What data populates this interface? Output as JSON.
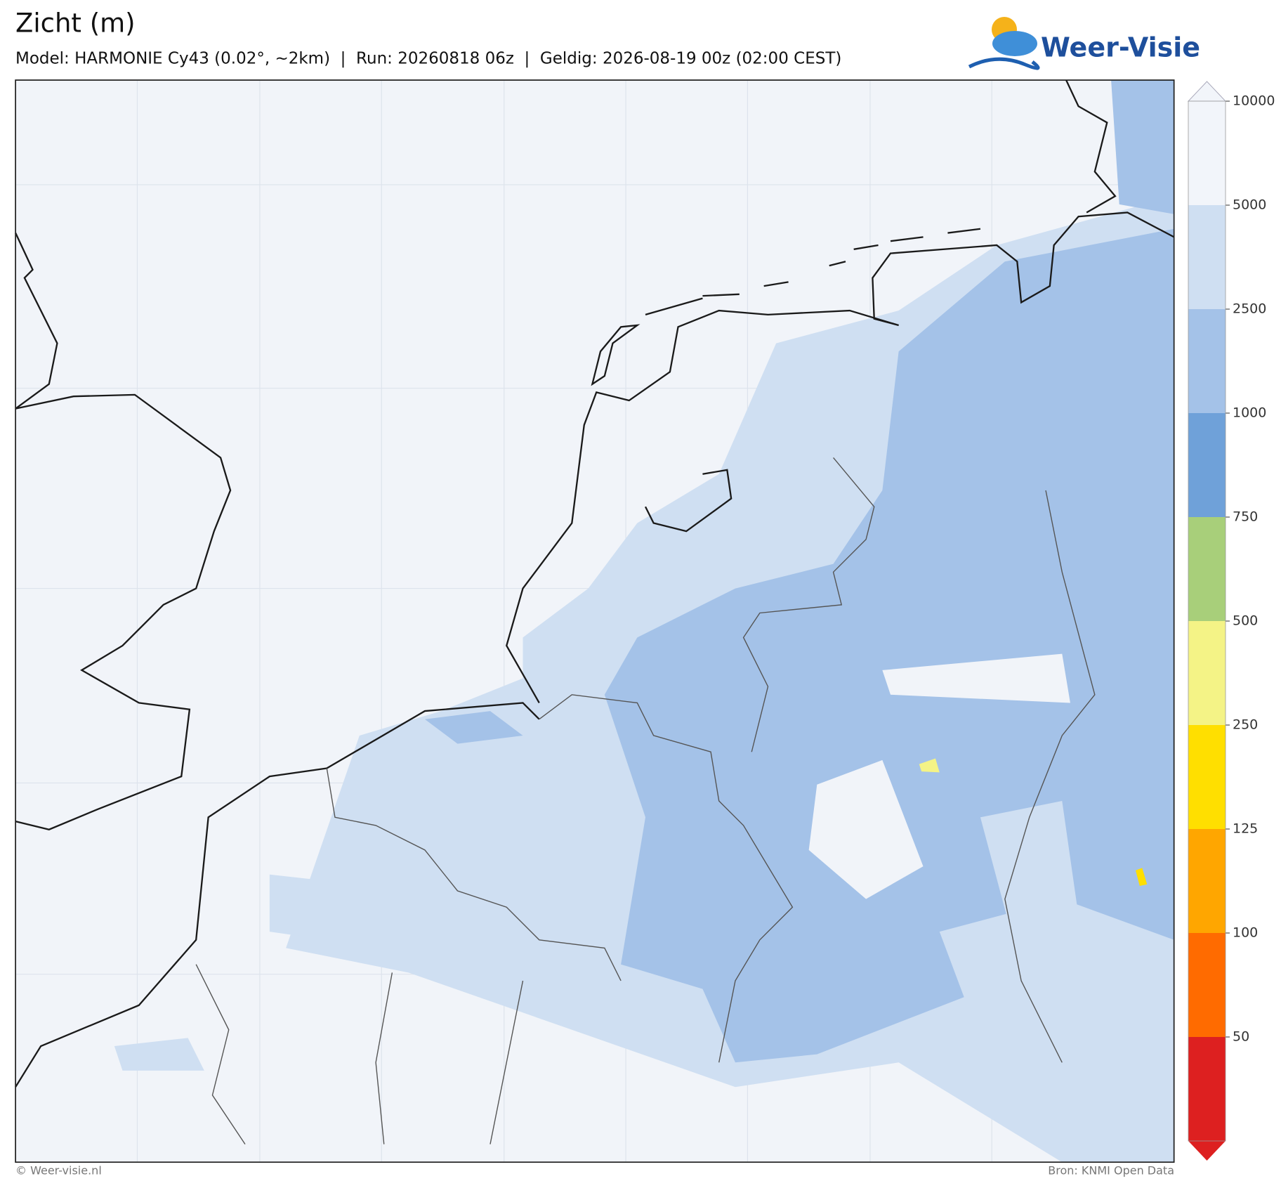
{
  "header": {
    "title": "Zicht (m)",
    "subtitle": "Model: HARMONIE Cy43 (0.02°, ~2km)  |  Run: 20260818 06z  |  Geldig: 2026-08-19 00z (02:00 CEST)"
  },
  "logo": {
    "text": "Weer-Visie"
  },
  "colorbar": {
    "levels": [
      10000,
      5000,
      2500,
      1000,
      750,
      500,
      250,
      125,
      100,
      50
    ],
    "colors": [
      "#f2f5fa",
      "#cfdff2",
      "#a4c2e8",
      "#6fa1d9",
      "#a8cf7a",
      "#f4f386",
      "#ffdf00",
      "#ffa600",
      "#ff6b00",
      "#dd2020"
    ]
  },
  "footer": {
    "left": "© Weer-visie.nl",
    "right": "Bron: KNMI Open Data"
  }
}
